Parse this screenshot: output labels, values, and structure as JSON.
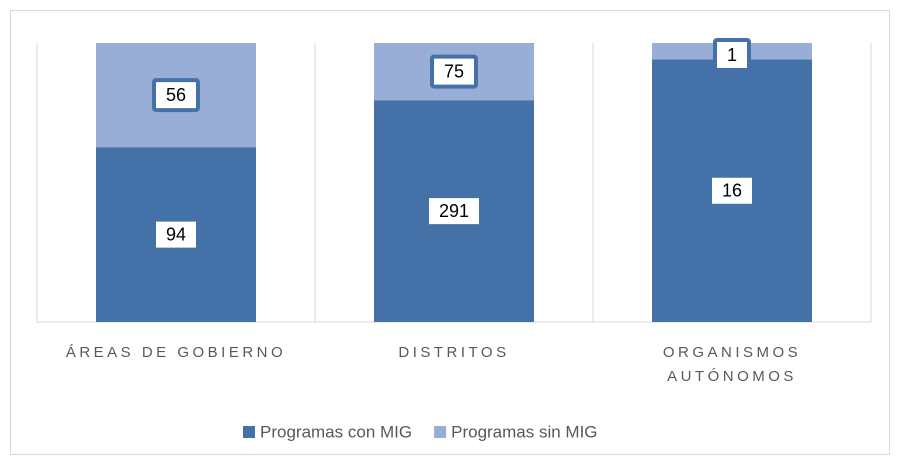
{
  "chart_data": {
    "type": "bar",
    "stacking": "percent",
    "categories": [
      "ÁREAS DE GOBIERNO",
      "DISTRITOS",
      "ORGANISMOS AUTÓNOMOS"
    ],
    "series": [
      {
        "name": "Programas con MIG",
        "color": "#4472a8",
        "values": [
          94,
          291,
          16
        ]
      },
      {
        "name": "Programas sin MIG",
        "color": "#98aed6",
        "values": [
          56,
          75,
          1
        ]
      }
    ],
    "legend": "bottom"
  }
}
